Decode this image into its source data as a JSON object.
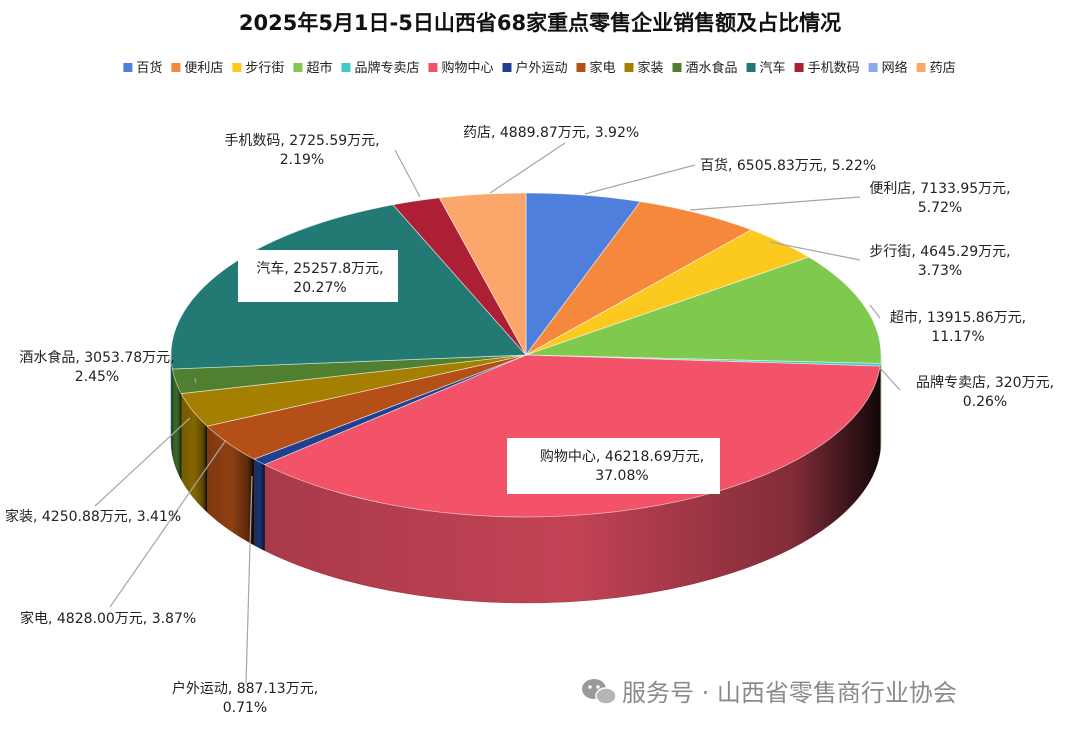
{
  "chart_data": {
    "type": "pie",
    "title": "2025年5月1日-5日山西省68家重点零售企业销售额及占比情况",
    "unit": "万元",
    "legend_position": "top",
    "slices": [
      {
        "name": "百货",
        "value": 6505.83,
        "value_label": "6505.83万元",
        "percent": "5.22%",
        "color": "#4f7fdd"
      },
      {
        "name": "便利店",
        "value": 7133.95,
        "value_label": "7133.95万元",
        "percent": "5.72%",
        "color": "#f5883c"
      },
      {
        "name": "步行街",
        "value": 4645.29,
        "value_label": "4645.29万元",
        "percent": "3.73%",
        "color": "#fcc91f"
      },
      {
        "name": "超市",
        "value": 13915.86,
        "value_label": "13915.86万元",
        "percent": "11.17%",
        "color": "#7fc94e"
      },
      {
        "name": "品牌专卖店",
        "value": 320,
        "value_label": "320万元",
        "percent": "0.26%",
        "color": "#3fc9c9"
      },
      {
        "name": "购物中心",
        "value": 46218.69,
        "value_label": "46218.69万元",
        "percent": "37.08%",
        "color": "#f25369"
      },
      {
        "name": "户外运动",
        "value": 887.13,
        "value_label": "887.13万元",
        "percent": "0.71%",
        "color": "#1f3f8f"
      },
      {
        "name": "家电",
        "value": 4828.0,
        "value_label": "4828.00万元",
        "percent": "3.87%",
        "color": "#b34f17"
      },
      {
        "name": "家装",
        "value": 4250.88,
        "value_label": "4250.88万元",
        "percent": "3.41%",
        "color": "#a58000"
      },
      {
        "name": "酒水食品",
        "value": 3053.78,
        "value_label": "3053.78万元",
        "percent": "2.45%",
        "color": "#4f7f2f"
      },
      {
        "name": "汽车",
        "value": 25257.8,
        "value_label": "25257.8万元",
        "percent": "20.27%",
        "color": "#237a74"
      },
      {
        "name": "手机数码",
        "value": 2725.59,
        "value_label": "2725.59万元",
        "percent": "2.19%",
        "color": "#ad1f35"
      },
      {
        "name": "网络",
        "value": 0,
        "value_label": "",
        "percent": "",
        "color": "#8aa9ee"
      },
      {
        "name": "药店",
        "value": 4889.87,
        "value_label": "4889.87万元",
        "percent": "3.92%",
        "color": "#fba66a"
      }
    ]
  },
  "watermark": {
    "icon": "wechat-icon",
    "text": "服务号 · 山西省零售商行业协会"
  }
}
